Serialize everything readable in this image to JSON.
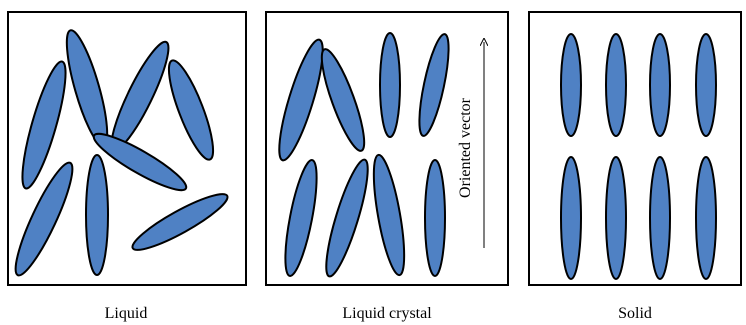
{
  "panels": [
    {
      "label": "Liquid"
    },
    {
      "label": "Liquid crystal",
      "annotation": "Oriented vector"
    },
    {
      "label": "Solid"
    }
  ]
}
